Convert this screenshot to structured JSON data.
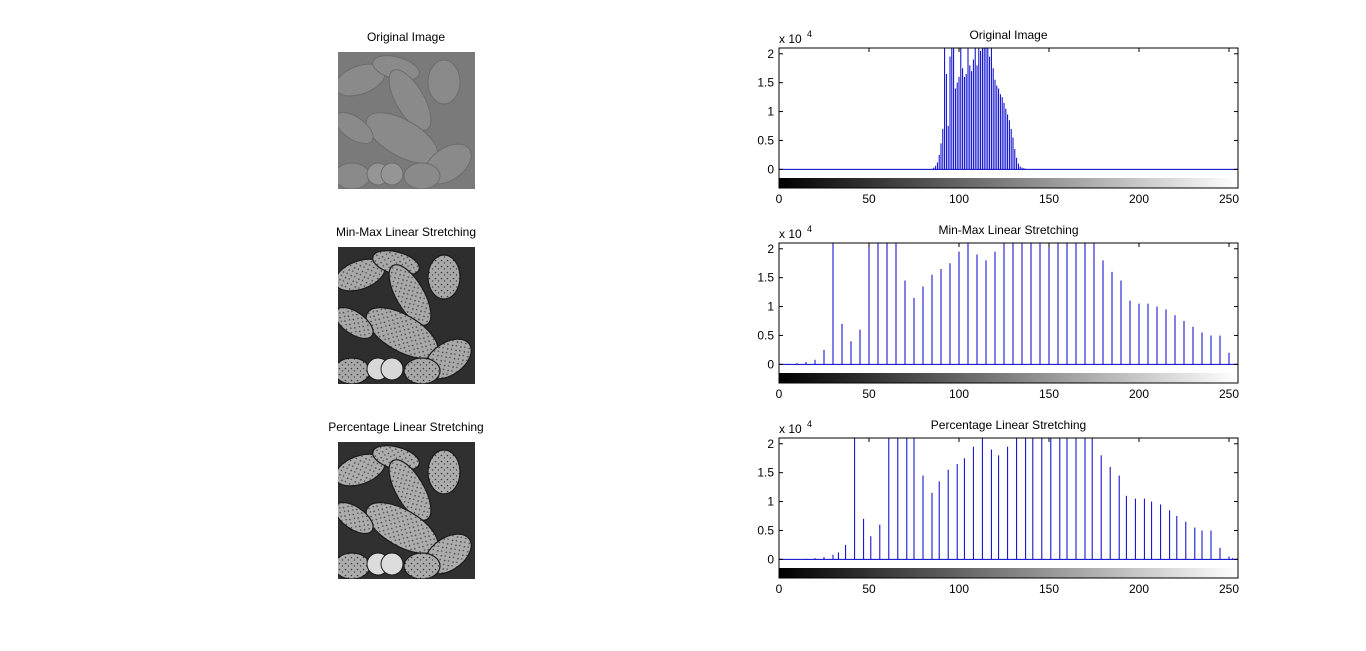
{
  "images": [
    {
      "title": "Original Image",
      "variant": "low-contrast"
    },
    {
      "title": "Min-Max Linear Stretching",
      "variant": "stretched"
    },
    {
      "title": "Percentage Linear Stretching",
      "variant": "stretched"
    }
  ],
  "colors": {
    "stem": "#0000cc",
    "axis": "#000000",
    "background": "#ffffff"
  },
  "chart_data": [
    {
      "type": "bar",
      "title": "Original Image",
      "exponent_label": "x 10",
      "exponent": "4",
      "xlim": [
        0,
        255
      ],
      "ylim": [
        -0.15,
        2.1
      ],
      "x_ticks": [
        0,
        50,
        100,
        150,
        200,
        250
      ],
      "y_ticks": [
        0,
        0.5,
        1,
        1.5,
        2
      ],
      "y_tick_labels": [
        "0",
        "0.5",
        "1",
        "1.5",
        "2"
      ],
      "colorbar": true,
      "x": [
        85,
        86,
        87,
        88,
        89,
        90,
        91,
        92,
        93,
        94,
        95,
        96,
        97,
        98,
        99,
        100,
        101,
        102,
        103,
        104,
        105,
        106,
        107,
        108,
        109,
        110,
        111,
        112,
        113,
        114,
        115,
        116,
        117,
        118,
        119,
        120,
        121,
        122,
        123,
        124,
        125,
        126,
        127,
        128,
        129,
        130,
        131,
        132,
        133,
        134,
        135,
        136,
        137,
        138
      ],
      "values": [
        0.01,
        0.03,
        0.06,
        0.12,
        0.25,
        0.45,
        0.7,
        2.1,
        1.65,
        0.75,
        1.95,
        2.1,
        2.1,
        1.4,
        1.5,
        1.6,
        2.1,
        1.75,
        1.6,
        1.65,
        2.1,
        1.8,
        1.7,
        1.9,
        2.1,
        1.8,
        2.1,
        2.05,
        2.1,
        2.1,
        2.1,
        2.1,
        1.95,
        2.1,
        1.75,
        1.55,
        1.45,
        1.4,
        1.3,
        1.25,
        1.15,
        1.05,
        0.95,
        0.85,
        0.7,
        0.55,
        0.35,
        0.2,
        0.1,
        0.05,
        0.03,
        0.02,
        0.01,
        0.005
      ]
    },
    {
      "type": "bar",
      "title": "Min-Max Linear Stretching",
      "exponent_label": "x 10",
      "exponent": "4",
      "xlim": [
        0,
        255
      ],
      "ylim": [
        -0.15,
        2.1
      ],
      "x_ticks": [
        0,
        50,
        100,
        150,
        200,
        250
      ],
      "y_ticks": [
        0,
        0.5,
        1,
        1.5,
        2
      ],
      "y_tick_labels": [
        "0",
        "0.5",
        "1",
        "1.5",
        "2"
      ],
      "colorbar": true,
      "x": [
        0,
        5,
        10,
        15,
        20,
        25,
        30,
        35,
        40,
        45,
        50,
        55,
        60,
        65,
        70,
        75,
        80,
        85,
        90,
        95,
        100,
        105,
        110,
        115,
        120,
        125,
        130,
        135,
        140,
        145,
        150,
        155,
        160,
        165,
        170,
        175,
        180,
        185,
        190,
        195,
        200,
        205,
        210,
        215,
        220,
        225,
        230,
        235,
        240,
        245,
        250
      ],
      "values": [
        0.005,
        0.01,
        0.02,
        0.04,
        0.08,
        0.25,
        2.1,
        0.7,
        0.4,
        0.6,
        2.1,
        2.1,
        2.1,
        2.1,
        1.45,
        1.15,
        1.35,
        1.55,
        1.65,
        1.75,
        1.95,
        2.1,
        1.9,
        1.8,
        1.95,
        2.1,
        2.1,
        2.1,
        2.1,
        2.1,
        2.1,
        2.1,
        2.1,
        2.1,
        2.1,
        2.1,
        1.8,
        1.6,
        1.45,
        1.1,
        1.05,
        1.05,
        1.0,
        0.95,
        0.85,
        0.75,
        0.65,
        0.55,
        0.5,
        0.5,
        0.2
      ]
    },
    {
      "type": "bar",
      "title": "Percentage Linear Stretching",
      "exponent_label": "x 10",
      "exponent": "4",
      "xlim": [
        0,
        255
      ],
      "ylim": [
        -0.15,
        2.1
      ],
      "x_ticks": [
        0,
        50,
        100,
        150,
        200,
        250
      ],
      "y_ticks": [
        0,
        0.5,
        1,
        1.5,
        2
      ],
      "y_tick_labels": [
        "0",
        "0.5",
        "1",
        "1.5",
        "2"
      ],
      "colorbar": true,
      "x": [
        10,
        15,
        20,
        25,
        30,
        33,
        37,
        42,
        47,
        51,
        56,
        61,
        66,
        71,
        75,
        80,
        85,
        89,
        94,
        99,
        103,
        108,
        113,
        118,
        122,
        127,
        132,
        137,
        141,
        146,
        151,
        156,
        160,
        165,
        170,
        174,
        179,
        184,
        189,
        193,
        198,
        203,
        207,
        212,
        217,
        221,
        226,
        231,
        235,
        240,
        245,
        250,
        252
      ],
      "values": [
        0.005,
        0.01,
        0.02,
        0.04,
        0.08,
        0.12,
        0.25,
        2.1,
        0.7,
        0.4,
        0.6,
        2.1,
        2.1,
        2.1,
        2.1,
        1.45,
        1.15,
        1.35,
        1.55,
        1.65,
        1.75,
        1.95,
        2.1,
        1.9,
        1.8,
        1.95,
        2.1,
        2.1,
        2.1,
        2.1,
        2.1,
        2.1,
        2.1,
        2.1,
        2.1,
        2.1,
        1.8,
        1.6,
        1.45,
        1.1,
        1.05,
        1.05,
        1.0,
        0.95,
        0.85,
        0.75,
        0.65,
        0.55,
        0.5,
        0.5,
        0.2,
        0.05,
        0.02
      ]
    }
  ]
}
